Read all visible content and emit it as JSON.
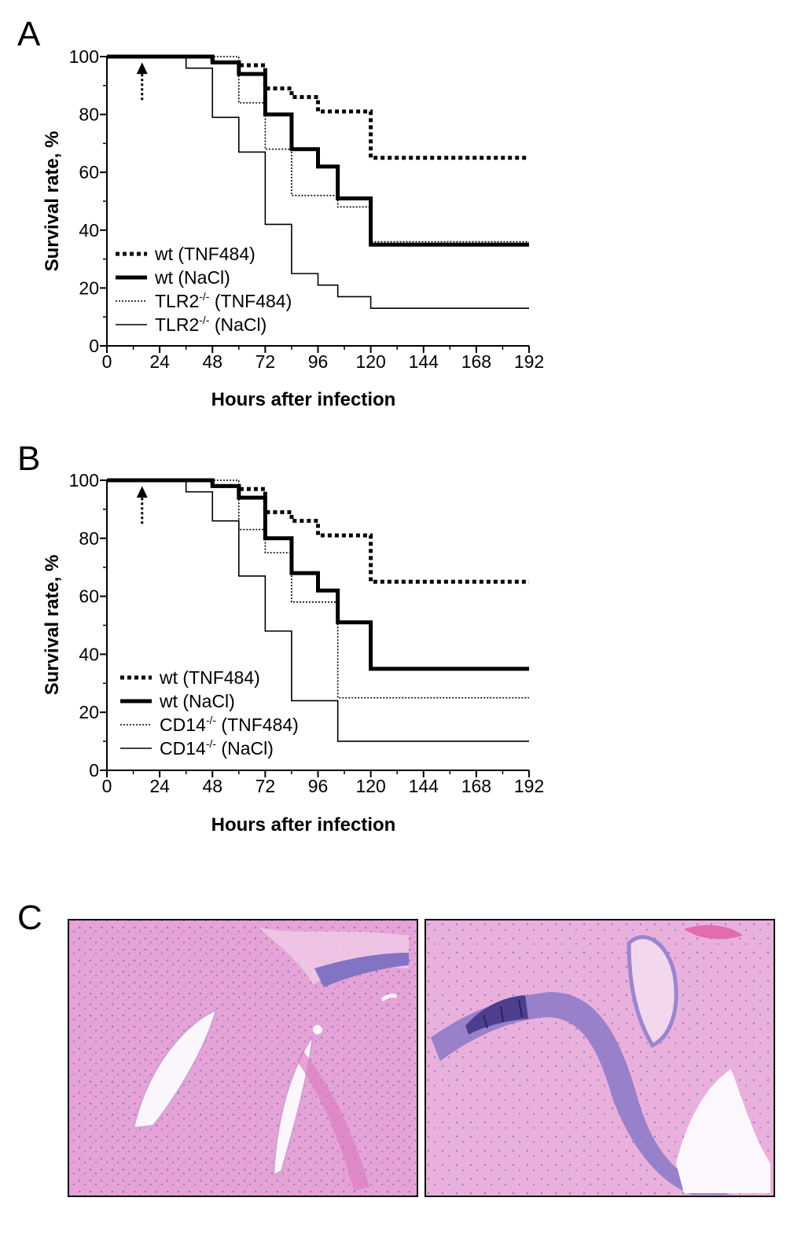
{
  "panels": {
    "a": "A",
    "b": "B",
    "c": "C"
  },
  "chart_data": [
    {
      "type": "line",
      "step": true,
      "panel": "A",
      "xlabel": "Hours after infection",
      "ylabel": "Survival rate, %",
      "xlim": [
        0,
        192
      ],
      "ylim": [
        0,
        100
      ],
      "xticks": [
        0,
        24,
        48,
        72,
        96,
        120,
        144,
        168,
        192
      ],
      "yticks": [
        0,
        20,
        40,
        60,
        80,
        100
      ],
      "grid": false,
      "legend_position": "bottom-left",
      "arrow_at_hours": 16,
      "series": [
        {
          "name": "wt (TNF484)",
          "sup": "",
          "after": "",
          "style": "thick-dotted",
          "x": [
            0,
            48,
            60,
            72,
            84,
            96,
            120,
            132,
            192
          ],
          "y": [
            100,
            98,
            97,
            89,
            86,
            81,
            65,
            65,
            65
          ]
        },
        {
          "name": "wt (NaCl)",
          "sup": "",
          "after": "",
          "style": "thick-solid",
          "x": [
            0,
            48,
            60,
            72,
            84,
            96,
            105,
            120,
            132,
            192
          ],
          "y": [
            100,
            98,
            94,
            80,
            68,
            62,
            51,
            35,
            35,
            35
          ]
        },
        {
          "name": "TLR2",
          "sup": "-/-",
          "after": " (TNF484)",
          "style": "thin-dotted",
          "x": [
            0,
            60,
            72,
            84,
            105,
            120,
            192
          ],
          "y": [
            100,
            84,
            68,
            52,
            48,
            36,
            36
          ]
        },
        {
          "name": "TLR2",
          "sup": "-/-",
          "after": " (NaCl)",
          "style": "thin-solid",
          "x": [
            0,
            36,
            48,
            60,
            72,
            84,
            96,
            105,
            120,
            192
          ],
          "y": [
            100,
            96,
            79,
            67,
            42,
            25,
            21,
            17,
            13,
            13
          ]
        }
      ]
    },
    {
      "type": "line",
      "step": true,
      "panel": "B",
      "xlabel": "Hours after infection",
      "ylabel": "Survival rate, %",
      "xlim": [
        0,
        192
      ],
      "ylim": [
        0,
        100
      ],
      "xticks": [
        0,
        24,
        48,
        72,
        96,
        120,
        144,
        168,
        192
      ],
      "yticks": [
        0,
        20,
        40,
        60,
        80,
        100
      ],
      "grid": false,
      "legend_position": "bottom-left",
      "arrow_at_hours": 16,
      "series": [
        {
          "name": "wt (TNF484)",
          "sup": "",
          "after": "",
          "style": "thick-dotted",
          "x": [
            0,
            48,
            60,
            72,
            84,
            96,
            120,
            132,
            192
          ],
          "y": [
            100,
            98,
            97,
            89,
            86,
            81,
            65,
            65,
            65
          ]
        },
        {
          "name": "wt (NaCl)",
          "sup": "",
          "after": "",
          "style": "thick-solid",
          "x": [
            0,
            48,
            60,
            72,
            84,
            96,
            105,
            120,
            132,
            192
          ],
          "y": [
            100,
            98,
            94,
            80,
            68,
            62,
            51,
            35,
            35,
            35
          ]
        },
        {
          "name": "CD14",
          "sup": "-/-",
          "after": " (TNF484)",
          "style": "thin-dotted",
          "x": [
            0,
            60,
            72,
            84,
            105,
            192
          ],
          "y": [
            100,
            83,
            75,
            58,
            25,
            25
          ]
        },
        {
          "name": "CD14",
          "sup": "-/-",
          "after": " (NaCl)",
          "style": "thin-solid",
          "x": [
            0,
            36,
            48,
            60,
            72,
            84,
            105,
            192
          ],
          "y": [
            100,
            96,
            86,
            67,
            48,
            24,
            10,
            10
          ]
        }
      ]
    }
  ],
  "colors": {
    "ink": "#000000",
    "tissue_pink": "#e8a6d6",
    "tissue_light": "#f1c9e8",
    "nuclei_purple": "#8f7fcb",
    "dense_purple": "#5d4f9c",
    "lumen_white": "#fbf7fc"
  },
  "micrographs": [
    {
      "name": "histology-left"
    },
    {
      "name": "histology-right"
    }
  ]
}
